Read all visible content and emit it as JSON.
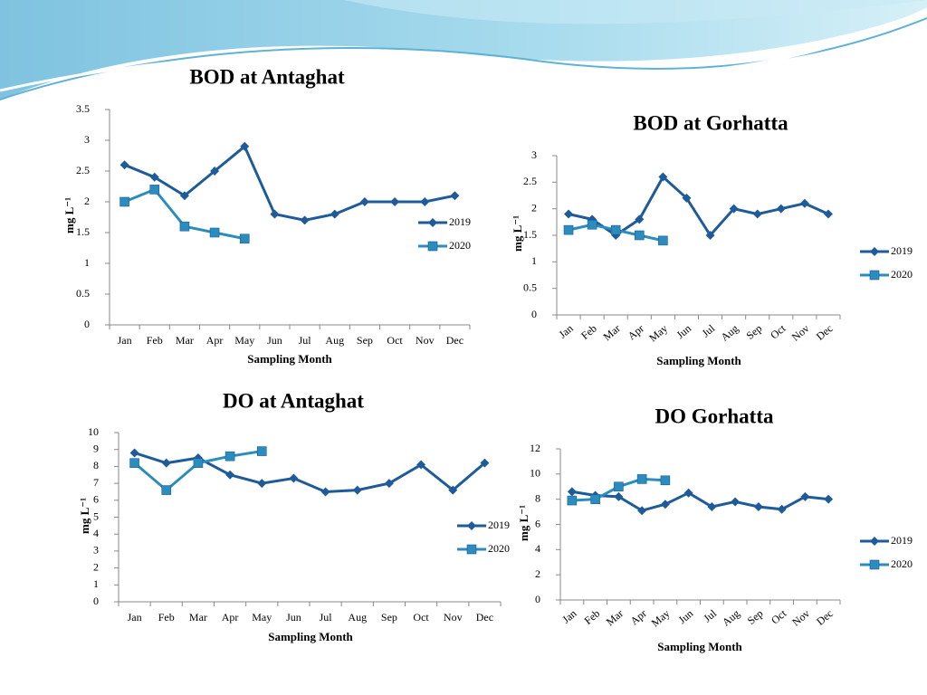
{
  "chart_data": [
    {
      "type": "line",
      "title": "BOD at Antaghat",
      "x_label": "Sampling Month",
      "y_label": "mg L⁻¹",
      "categories": [
        "Jan",
        "Feb",
        "Mar",
        "Apr",
        "May",
        "Jun",
        "Jul",
        "Aug",
        "Sep",
        "Oct",
        "Nov",
        "Dec"
      ],
      "series": [
        {
          "name": "2019",
          "color": "#1f5b99",
          "marker": "diamond",
          "values": [
            2.6,
            2.4,
            2.1,
            2.5,
            2.9,
            1.8,
            1.7,
            1.8,
            2.0,
            2.0,
            2.0,
            2.1
          ]
        },
        {
          "name": "2020",
          "color": "#2b8cbe",
          "marker": "square",
          "values": [
            2.0,
            2.2,
            1.6,
            1.5,
            1.4,
            null,
            null,
            null,
            null,
            null,
            null,
            null
          ]
        }
      ],
      "ylim": [
        0,
        3.5
      ],
      "yticks": [
        0,
        0.5,
        1,
        1.5,
        2,
        2.5,
        3,
        3.5
      ],
      "grid": false,
      "legend": "right"
    },
    {
      "type": "line",
      "title": "BOD at Gorhatta",
      "x_label": "Sampling Month",
      "y_label": "mg L⁻¹",
      "categories": [
        "Jan",
        "Feb",
        "Mar",
        "Apr",
        "May",
        "Jun",
        "Jul",
        "Aug",
        "Sep",
        "Oct",
        "Nov",
        "Dec"
      ],
      "series": [
        {
          "name": "2019",
          "color": "#1f5b99",
          "marker": "diamond",
          "values": [
            1.9,
            1.8,
            1.5,
            1.8,
            2.6,
            2.2,
            1.5,
            2.0,
            1.9,
            2.0,
            2.1,
            1.9
          ]
        },
        {
          "name": "2020",
          "color": "#2b8cbe",
          "marker": "square",
          "values": [
            1.6,
            1.7,
            1.6,
            1.5,
            1.4,
            null,
            null,
            null,
            null,
            null,
            null,
            null
          ]
        }
      ],
      "ylim": [
        0,
        3
      ],
      "yticks": [
        0,
        0.5,
        1,
        1.5,
        2,
        2.5,
        3
      ],
      "grid": false,
      "legend": "right"
    },
    {
      "type": "line",
      "title": "DO at Antaghat",
      "x_label": "Sampling Month",
      "y_label": "mg L⁻¹",
      "categories": [
        "Jan",
        "Feb",
        "Mar",
        "Apr",
        "May",
        "Jun",
        "Jul",
        "Aug",
        "Sep",
        "Oct",
        "Nov",
        "Dec"
      ],
      "series": [
        {
          "name": "2019",
          "color": "#1f5b99",
          "marker": "diamond",
          "values": [
            8.8,
            8.2,
            8.5,
            7.5,
            7.0,
            7.3,
            6.5,
            6.6,
            7.0,
            8.1,
            6.6,
            8.2
          ]
        },
        {
          "name": "2020",
          "color": "#2b8cbe",
          "marker": "square",
          "values": [
            8.2,
            6.6,
            8.2,
            8.6,
            8.9,
            null,
            null,
            null,
            null,
            null,
            null,
            null
          ]
        }
      ],
      "ylim": [
        0,
        10
      ],
      "yticks": [
        0,
        1,
        2,
        3,
        4,
        5,
        6,
        7,
        8,
        9,
        10
      ],
      "grid": false,
      "legend": "right"
    },
    {
      "type": "line",
      "title": "DO Gorhatta",
      "x_label": "Sampling Month",
      "y_label": "mg L⁻¹",
      "categories": [
        "Jan",
        "Feb",
        "Mar",
        "Apr",
        "May",
        "Jun",
        "Jul",
        "Aug",
        "Sep",
        "Oct",
        "Nov",
        "Dec"
      ],
      "series": [
        {
          "name": "2019",
          "color": "#1f5b99",
          "marker": "diamond",
          "values": [
            8.6,
            8.3,
            8.2,
            7.1,
            7.6,
            8.5,
            7.4,
            7.8,
            7.4,
            7.2,
            8.2,
            8.0
          ]
        },
        {
          "name": "2020",
          "color": "#2b8cbe",
          "marker": "square",
          "values": [
            7.9,
            8.0,
            9.0,
            9.6,
            9.5,
            null,
            null,
            null,
            null,
            null,
            null,
            null
          ]
        }
      ],
      "ylim": [
        0,
        12
      ],
      "yticks": [
        0,
        2,
        4,
        6,
        8,
        10,
        12
      ],
      "grid": false,
      "legend": "right"
    }
  ]
}
